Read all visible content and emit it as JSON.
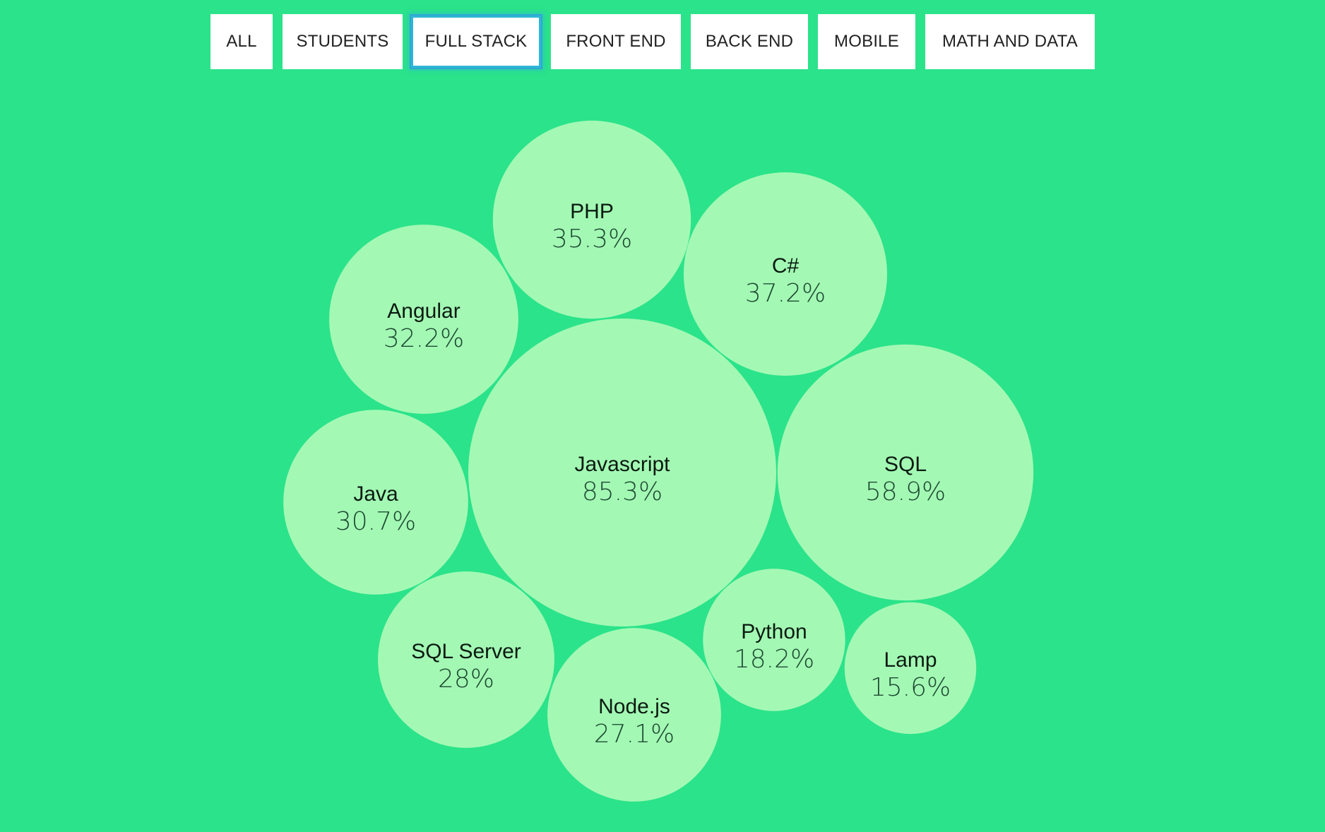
{
  "filters": {
    "items": [
      {
        "label": "ALL",
        "active": false
      },
      {
        "label": "STUDENTS",
        "active": false
      },
      {
        "label": "FULL STACK",
        "active": true
      },
      {
        "label": "FRONT END",
        "active": false
      },
      {
        "label": "BACK END",
        "active": false
      },
      {
        "label": "MOBILE",
        "active": false
      },
      {
        "label": "MATH AND DATA",
        "active": false
      }
    ]
  },
  "colors": {
    "background": "#2be38a",
    "bubble_fill": "#a3f9b4",
    "active_border": "#2ea8d2"
  },
  "chart_data": {
    "type": "bubble",
    "title": "",
    "categories": [
      "Javascript",
      "SQL",
      "C#",
      "PHP",
      "Angular",
      "Java",
      "SQL Server",
      "Node.js",
      "Python",
      "Lamp"
    ],
    "values": [
      85.3,
      58.9,
      37.2,
      35.3,
      32.2,
      30.7,
      28,
      27.1,
      18.2,
      15.6
    ],
    "value_labels": [
      "85.3%",
      "58.9%",
      "37.2%",
      "35.3%",
      "32.2%",
      "30.7%",
      "28%",
      "27.1%",
      "18.2%",
      "15.6%"
    ],
    "unit": "%"
  }
}
